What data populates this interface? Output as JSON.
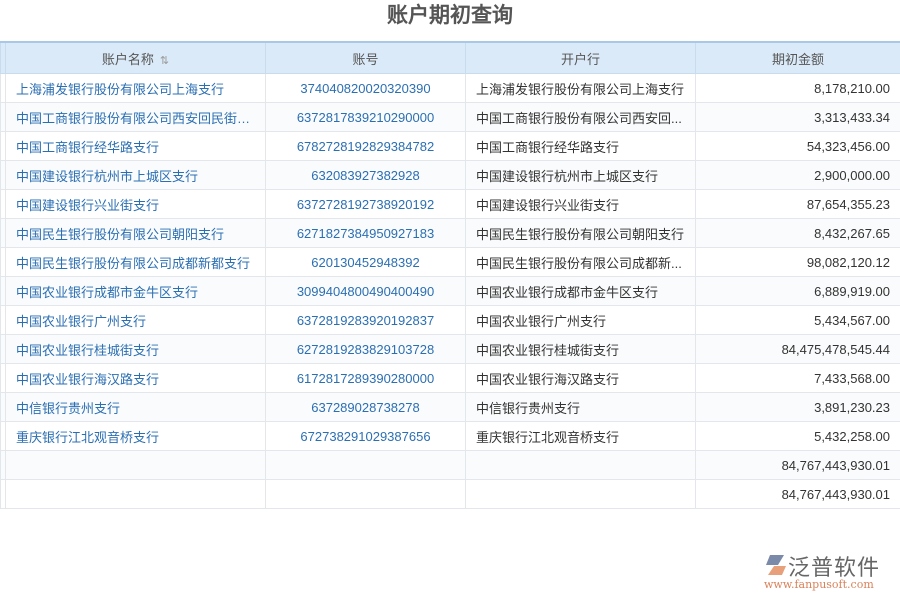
{
  "title": "账户期初查询",
  "columns": [
    "账户名称",
    "账号",
    "开户行",
    "期初金额"
  ],
  "sort_icon": "sort-icon",
  "rows": [
    {
      "name": "上海浦发银行股份有限公司上海支行",
      "account": "374040820020320390",
      "bank": "上海浦发银行股份有限公司上海支行",
      "amount": "8,178,210.00"
    },
    {
      "name": "中国工商银行股份有限公司西安回民街支行",
      "account": "6372817839210290000",
      "bank": "中国工商银行股份有限公司西安回...",
      "amount": "3,313,433.34"
    },
    {
      "name": "中国工商银行经华路支行",
      "account": "6782728192829384782",
      "bank": "中国工商银行经华路支行",
      "amount": "54,323,456.00"
    },
    {
      "name": "中国建设银行杭州市上城区支行",
      "account": "632083927382928",
      "bank": "中国建设银行杭州市上城区支行",
      "amount": "2,900,000.00"
    },
    {
      "name": "中国建设银行兴业街支行",
      "account": "6372728192738920192",
      "bank": "中国建设银行兴业街支行",
      "amount": "87,654,355.23"
    },
    {
      "name": "中国民生银行股份有限公司朝阳支行",
      "account": "6271827384950927183",
      "bank": "中国民生银行股份有限公司朝阳支行",
      "amount": "8,432,267.65"
    },
    {
      "name": "中国民生银行股份有限公司成都新都支行",
      "account": "620130452948392",
      "bank": "中国民生银行股份有限公司成都新...",
      "amount": "98,082,120.12"
    },
    {
      "name": "中国农业银行成都市金牛区支行",
      "account": "3099404800490400490",
      "bank": "中国农业银行成都市金牛区支行",
      "amount": "6,889,919.00"
    },
    {
      "name": "中国农业银行广州支行",
      "account": "6372819283920192837",
      "bank": "中国农业银行广州支行",
      "amount": "5,434,567.00"
    },
    {
      "name": "中国农业银行桂城街支行",
      "account": "6272819283829103728",
      "bank": "中国农业银行桂城街支行",
      "amount": "84,475,478,545.44"
    },
    {
      "name": "中国农业银行海汉路支行",
      "account": "6172817289390280000",
      "bank": "中国农业银行海汉路支行",
      "amount": "7,433,568.00"
    },
    {
      "name": "中信银行贵州支行",
      "account": "637289028738278",
      "bank": "中信银行贵州支行",
      "amount": "3,891,230.23"
    },
    {
      "name": "重庆银行江北观音桥支行",
      "account": "672738291029387656",
      "bank": "重庆银行江北观音桥支行",
      "amount": "5,432,258.00"
    }
  ],
  "totals": [
    "84,767,443,930.01",
    "84,767,443,930.01"
  ],
  "logo": {
    "brand": "泛普软件",
    "url": "www.fanpusoft.com"
  },
  "colors": {
    "header_bg": "#dbeaf8",
    "link": "#2b6fb3"
  }
}
